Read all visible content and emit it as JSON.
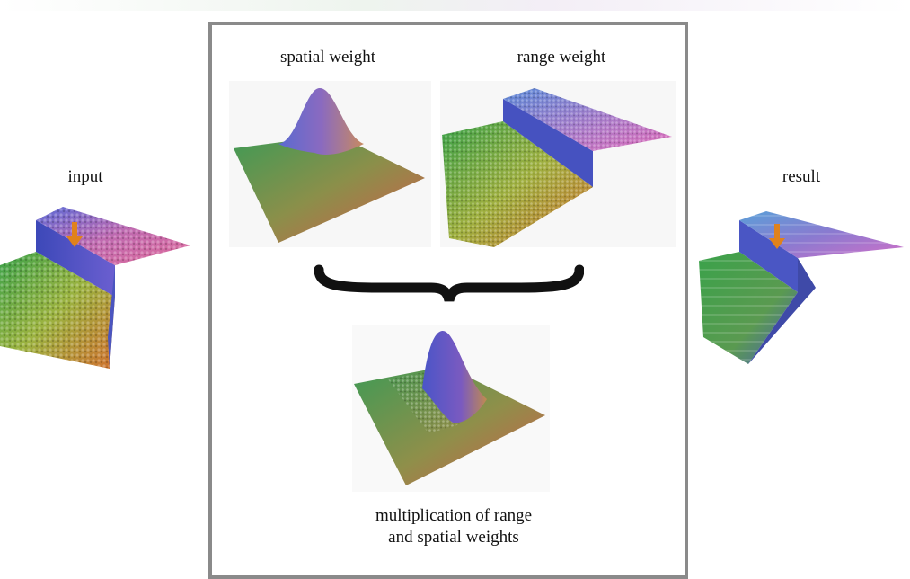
{
  "labels": {
    "input": "input",
    "spatial_weight": "spatial weight",
    "range_weight": "range weight",
    "result": "result",
    "product_line1": "multiplication of range",
    "product_line2": "and spatial weights"
  },
  "colors": {
    "frame": "#8a8a8a",
    "arrow": "#e0821c",
    "green": "#3f9a3f",
    "blue": "#4a55c8",
    "magenta": "#c04aa8",
    "orange": "#d27a3a"
  },
  "icons": [
    "orange-down-arrow-icon",
    "curly-brace-icon"
  ]
}
